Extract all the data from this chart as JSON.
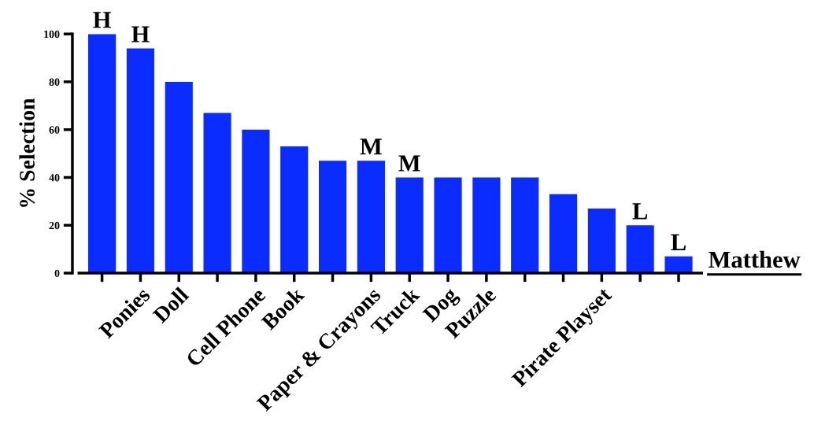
{
  "chart_data": {
    "type": "bar",
    "ylabel": "% Selection",
    "categories": [
      null,
      "Ponies",
      "Doll",
      null,
      "Cell Phone",
      "Book",
      null,
      "Paper & Crayons",
      "Truck",
      "Dog",
      "Puzzle",
      null,
      null,
      "Pirate Playset",
      null,
      null
    ],
    "values": [
      100,
      94,
      80,
      67,
      60,
      53,
      47,
      47,
      40,
      40,
      40,
      40,
      33,
      27,
      20,
      7
    ],
    "value_labels": [
      "H",
      "H",
      null,
      null,
      null,
      null,
      null,
      "M",
      "M",
      null,
      null,
      null,
      null,
      null,
      "L",
      "L"
    ],
    "color": "#0a2cff",
    "ylim": [
      0,
      100
    ],
    "yticks": [
      0,
      20,
      40,
      60,
      80,
      100
    ],
    "grid": false,
    "legend": false,
    "annotations": [
      "Matthew"
    ]
  }
}
